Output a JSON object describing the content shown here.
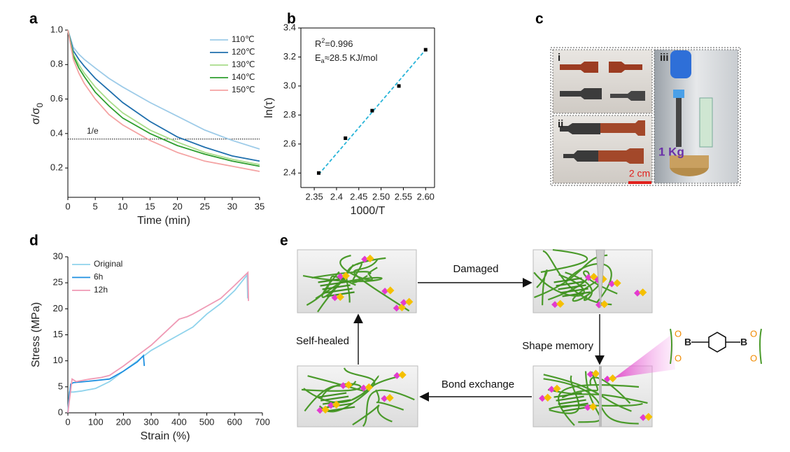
{
  "chart_data": [
    {
      "type": "line",
      "panel": "a",
      "xlabel": "Time (min)",
      "ylabel": "σ/σ",
      "ylabel_subscript": "0",
      "x": [
        0,
        1,
        2,
        3,
        5,
        7.5,
        10,
        15,
        20,
        25,
        30,
        35
      ],
      "series": [
        {
          "name": "110℃",
          "color": "#9dcbe8",
          "values": [
            1.0,
            0.9,
            0.86,
            0.83,
            0.78,
            0.72,
            0.67,
            0.58,
            0.5,
            0.42,
            0.36,
            0.31
          ]
        },
        {
          "name": "120℃",
          "color": "#1f6fad",
          "values": [
            1.0,
            0.88,
            0.83,
            0.79,
            0.72,
            0.65,
            0.58,
            0.47,
            0.38,
            0.32,
            0.27,
            0.24
          ]
        },
        {
          "name": "130℃",
          "color": "#a8dc8a",
          "values": [
            1.0,
            0.86,
            0.8,
            0.75,
            0.67,
            0.59,
            0.52,
            0.42,
            0.35,
            0.29,
            0.25,
            0.22
          ]
        },
        {
          "name": "140℃",
          "color": "#2e9e2e",
          "values": [
            1.0,
            0.85,
            0.78,
            0.73,
            0.64,
            0.56,
            0.49,
            0.4,
            0.33,
            0.28,
            0.24,
            0.21
          ]
        },
        {
          "name": "150℃",
          "color": "#f4a3a3",
          "values": [
            1.0,
            0.83,
            0.75,
            0.69,
            0.6,
            0.51,
            0.45,
            0.36,
            0.29,
            0.24,
            0.21,
            0.18
          ]
        }
      ],
      "xlim": [
        0,
        35
      ],
      "xticks": [
        0,
        5,
        10,
        15,
        20,
        25,
        30,
        35
      ],
      "ylim": [
        0.03,
        1.0
      ],
      "yticks": [
        0.2,
        0.4,
        0.6,
        0.8,
        {
          "value": 1.0,
          "label": "1.0"
        }
      ],
      "hline": {
        "value": 0.368,
        "label": "1/e"
      },
      "legend": "upper right"
    },
    {
      "type": "scatter",
      "panel": "b",
      "xlabel": "1000/T",
      "ylabel": "ln(τ)",
      "color": "#000000",
      "x": [
        2.36,
        2.42,
        2.48,
        2.54,
        2.6
      ],
      "values": [
        2.4,
        2.64,
        2.83,
        3.0,
        3.25
      ],
      "fit": {
        "x": [
          2.36,
          2.6
        ],
        "values": [
          2.39,
          3.25
        ],
        "color": "#27b4d8"
      },
      "annotations": [
        {
          "text": "R",
          "sup": "2",
          "after": "=0.996"
        },
        {
          "text": "E",
          "sub": "a",
          "after": "≈28.5 KJ/mol"
        }
      ],
      "xlim": [
        2.32,
        2.62
      ],
      "xticks": [
        2.35,
        2.4,
        2.45,
        {
          "value": 2.5,
          "label": "2.50"
        },
        2.55,
        {
          "value": 2.6,
          "label": "2.60"
        }
      ],
      "ylim": [
        2.3,
        3.4
      ],
      "yticks": [
        2.4,
        2.6,
        2.8,
        {
          "value": 3.0,
          "label": "3.0"
        },
        3.2,
        3.4
      ]
    },
    {
      "type": "line",
      "panel": "d",
      "xlabel": "Strain (%)",
      "ylabel": "Stress (MPa)",
      "series": [
        {
          "name": "Original",
          "color": "#8fd3ec",
          "x": [
            0,
            5,
            20,
            50,
            100,
            150,
            200,
            250,
            300,
            400,
            450,
            500,
            550,
            600,
            645,
            647
          ],
          "values": [
            0,
            4,
            4,
            4.2,
            4.7,
            6,
            8,
            10,
            12,
            15,
            16.5,
            19,
            21,
            23.5,
            26.5,
            22
          ]
        },
        {
          "name": "6h",
          "color": "#1d8fe0",
          "x": [
            0,
            10,
            20,
            100,
            150,
            200,
            250,
            272,
            275
          ],
          "values": [
            0,
            5.5,
            5.8,
            6.2,
            6.5,
            8,
            9.8,
            11,
            9
          ]
        },
        {
          "name": "12h",
          "color": "#ef9ab5",
          "x": [
            0,
            15,
            30,
            80,
            120,
            150,
            200,
            250,
            300,
            350,
            400,
            430,
            450,
            500,
            550,
            600,
            648,
            650
          ],
          "values": [
            0,
            6.5,
            6,
            6.5,
            6.8,
            7.2,
            9,
            11,
            13,
            15.5,
            18,
            18.5,
            19,
            20.5,
            22,
            24.5,
            27,
            21.5
          ]
        }
      ],
      "xlim": [
        0,
        700
      ],
      "xticks": [
        0,
        100,
        200,
        300,
        400,
        500,
        600,
        700
      ],
      "ylim": [
        0,
        30
      ],
      "yticks": [
        0,
        5,
        10,
        15,
        20,
        25,
        30
      ],
      "legend": "upper left"
    }
  ],
  "panel_c": {
    "panel": "c",
    "parts": [
      "i",
      "ii",
      "iii"
    ],
    "scale_bar": "2 cm",
    "weight": "1 Kg"
  },
  "panel_e": {
    "panel": "e",
    "steps": [
      "Damaged",
      "Shape memory",
      "Bond exchange",
      "Self-healed"
    ],
    "atoms": [
      "B",
      "B",
      "O",
      "O",
      "O",
      "O"
    ]
  }
}
